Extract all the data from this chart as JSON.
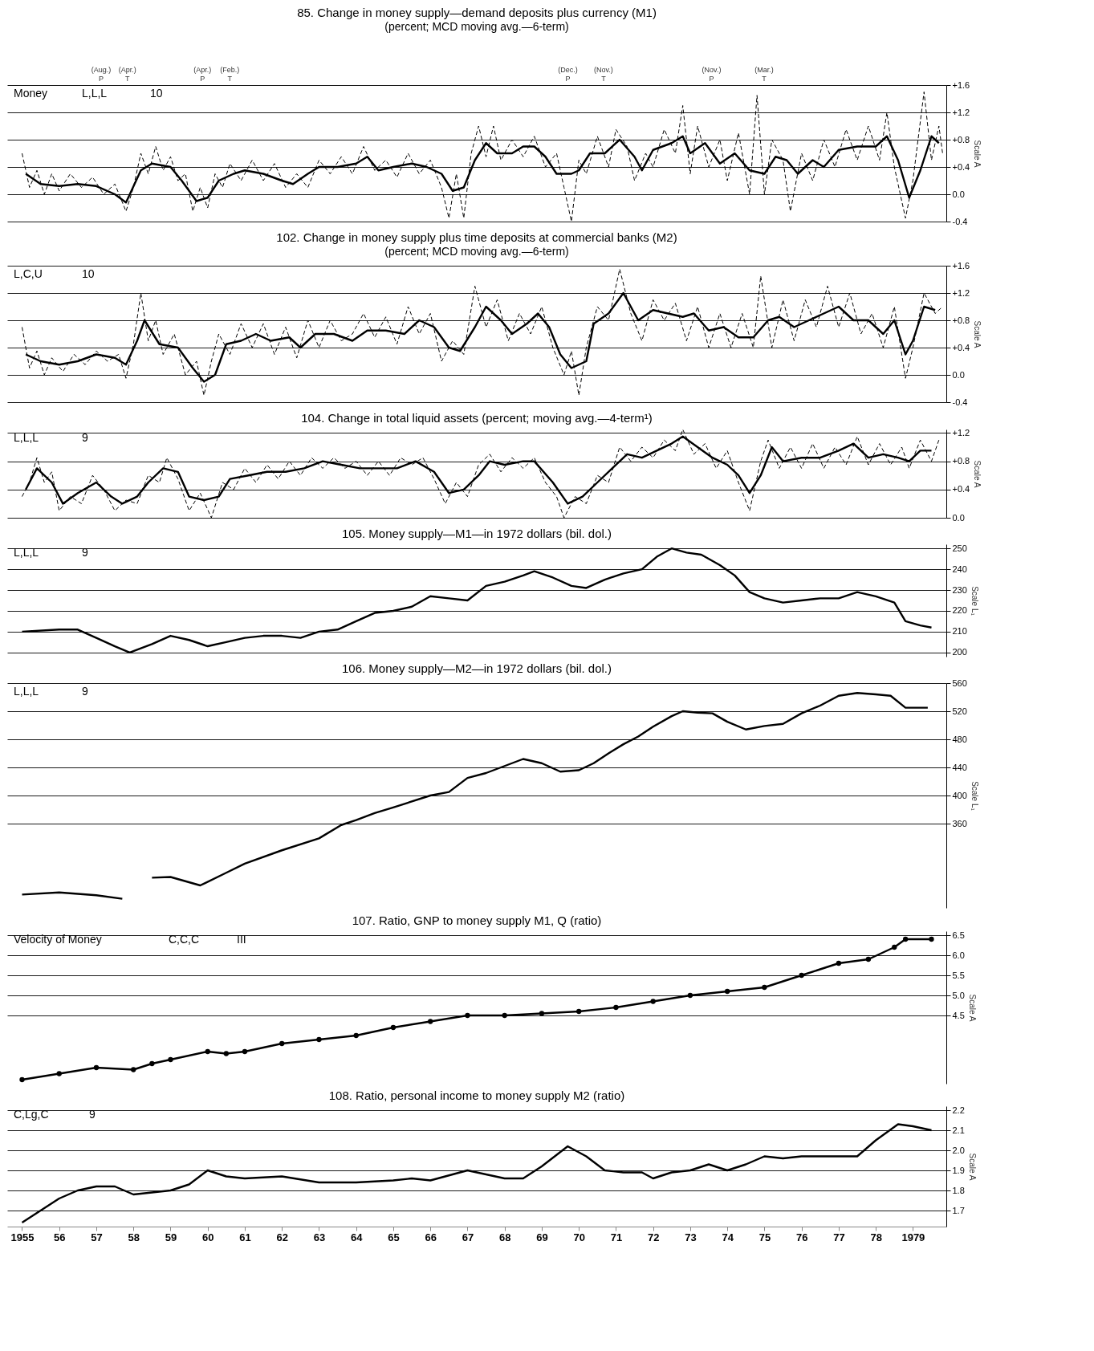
{
  "chart_data": [
    {
      "type": "line",
      "title": "85. Change in money supply—demand deposits plus currency (M1)",
      "subtitle": "(percent; MCD moving avg.—6-term)",
      "ylabel": "Scale A",
      "xlim": [
        1954.6,
        1979.9
      ],
      "ylim": [
        -0.4,
        1.6
      ],
      "yticks": [
        {
          "value": -0.4,
          "label": "-0.4"
        },
        {
          "value": 0,
          "label": "0.0"
        },
        {
          "value": 0.4,
          "label": "+0.4"
        },
        {
          "value": 0.8,
          "label": "+0.8"
        },
        {
          "value": 1.2,
          "label": "+1.2"
        },
        {
          "value": 1.6,
          "label": "+1.6"
        }
      ],
      "grid": "y",
      "tick_labels": "y",
      "annotations": [
        "(Aug.)\nP",
        "(Apr.)\nT",
        "(Apr.)\nP",
        "(Feb.)\nT",
        "(Dec.)\nP",
        "(Nov.)\nT",
        "(Nov.)\nP",
        "(Mar.)\nT",
        "Money",
        "L,L,L",
        "10"
      ],
      "series": [
        {
          "color": "#000000",
          "line_style": "dashed",
          "x": [
            1955.0,
            1955.2,
            1955.4,
            1955.6,
            1955.8,
            1956.0,
            1956.3,
            1956.6,
            1956.9,
            1957.2,
            1957.5,
            1957.8,
            1958.0,
            1958.2,
            1958.4,
            1958.6,
            1958.8,
            1959.0,
            1959.2,
            1959.4,
            1959.6,
            1959.8,
            1960.0,
            1960.2,
            1960.4,
            1960.6,
            1960.9,
            1961.2,
            1961.5,
            1961.8,
            1962.1,
            1962.4,
            1962.7,
            1963.0,
            1963.3,
            1963.6,
            1963.9,
            1964.2,
            1964.5,
            1964.8,
            1965.1,
            1965.4,
            1965.7,
            1966.0,
            1966.3,
            1966.5,
            1966.7,
            1966.9,
            1967.1,
            1967.3,
            1967.5,
            1967.7,
            1967.9,
            1968.2,
            1968.5,
            1968.8,
            1969.1,
            1969.4,
            1969.6,
            1969.8,
            1970.0,
            1970.2,
            1970.5,
            1970.8,
            1971.0,
            1971.3,
            1971.5,
            1971.8,
            1972.0,
            1972.3,
            1972.6,
            1972.8,
            1973.0,
            1973.2,
            1973.5,
            1973.8,
            1974.0,
            1974.3,
            1974.6,
            1974.8,
            1975.0,
            1975.2,
            1975.5,
            1975.7,
            1976.0,
            1976.3,
            1976.6,
            1976.9,
            1977.2,
            1977.5,
            1977.8,
            1978.1,
            1978.3,
            1978.5,
            1978.8,
            1979.0,
            1979.3,
            1979.5,
            1979.7,
            1979.8
          ],
          "values": [
            0.6,
            0.1,
            0.35,
            0.0,
            0.3,
            0.05,
            0.3,
            0.1,
            0.25,
            0.0,
            0.15,
            -0.25,
            0.1,
            0.6,
            0.3,
            0.7,
            0.35,
            0.55,
            0.2,
            0.3,
            -0.25,
            0.1,
            -0.2,
            0.3,
            0.1,
            0.45,
            0.2,
            0.5,
            0.2,
            0.45,
            0.1,
            0.3,
            0.1,
            0.5,
            0.3,
            0.55,
            0.3,
            0.7,
            0.35,
            0.5,
            0.25,
            0.6,
            0.3,
            0.5,
            0.1,
            -0.35,
            0.3,
            -0.35,
            0.6,
            1.0,
            0.55,
            1.0,
            0.5,
            0.8,
            0.55,
            0.85,
            0.4,
            0.6,
            0.1,
            -0.4,
            0.5,
            0.3,
            0.85,
            0.4,
            0.95,
            0.7,
            0.2,
            0.6,
            0.4,
            0.95,
            0.6,
            1.3,
            0.3,
            1.0,
            0.4,
            0.8,
            0.2,
            0.9,
            0.0,
            1.45,
            0.0,
            0.8,
            0.5,
            -0.25,
            0.6,
            0.2,
            0.8,
            0.4,
            0.95,
            0.5,
            1.0,
            0.5,
            1.2,
            0.4,
            -0.35,
            0.2,
            1.5,
            0.5,
            1.0,
            0.6
          ]
        },
        {
          "color": "#000000",
          "line_style": "solid",
          "x": [
            1955.1,
            1955.5,
            1956,
            1956.5,
            1957,
            1957.5,
            1957.8,
            1958.2,
            1958.5,
            1959,
            1959.3,
            1959.7,
            1960,
            1960.3,
            1960.7,
            1961,
            1961.5,
            1962,
            1962.3,
            1962.7,
            1963,
            1963.5,
            1964,
            1964.3,
            1964.6,
            1965,
            1965.5,
            1965.9,
            1966.3,
            1966.6,
            1966.9,
            1967.2,
            1967.5,
            1967.8,
            1968.2,
            1968.5,
            1968.8,
            1969.1,
            1969.4,
            1969.8,
            1970,
            1970.3,
            1970.7,
            1971.1,
            1971.5,
            1971.7,
            1972,
            1972.5,
            1972.8,
            1973,
            1973.4,
            1973.8,
            1974.2,
            1974.6,
            1975,
            1975.3,
            1975.6,
            1975.9,
            1976.3,
            1976.6,
            1977,
            1977.5,
            1978,
            1978.3,
            1978.6,
            1978.9,
            1979.2,
            1979.5,
            1979.7
          ],
          "values": [
            0.3,
            0.15,
            0.12,
            0.15,
            0.12,
            0.0,
            -0.12,
            0.35,
            0.45,
            0.4,
            0.2,
            -0.1,
            -0.05,
            0.2,
            0.3,
            0.35,
            0.3,
            0.2,
            0.15,
            0.3,
            0.4,
            0.4,
            0.45,
            0.55,
            0.35,
            0.4,
            0.45,
            0.4,
            0.3,
            0.05,
            0.1,
            0.5,
            0.75,
            0.6,
            0.6,
            0.7,
            0.7,
            0.55,
            0.3,
            0.3,
            0.35,
            0.6,
            0.6,
            0.8,
            0.55,
            0.35,
            0.65,
            0.75,
            0.85,
            0.6,
            0.75,
            0.45,
            0.6,
            0.35,
            0.3,
            0.55,
            0.5,
            0.3,
            0.5,
            0.4,
            0.65,
            0.7,
            0.7,
            0.85,
            0.5,
            -0.05,
            0.35,
            0.85,
            0.75
          ]
        }
      ]
    },
    {
      "type": "line",
      "title": "102. Change in money supply plus time deposits at commercial banks (M2)",
      "subtitle": "(percent; MCD moving avg.—6-term)",
      "ylabel": "Scale A",
      "xlim": [
        1954.6,
        1979.9
      ],
      "ylim": [
        -0.4,
        1.6
      ],
      "yticks": [
        {
          "value": -0.4,
          "label": "-0.4"
        },
        {
          "value": 0,
          "label": "0.0"
        },
        {
          "value": 0.4,
          "label": "+0.4"
        },
        {
          "value": 0.8,
          "label": "+0.8"
        },
        {
          "value": 1.2,
          "label": "+1.2"
        },
        {
          "value": 1.6,
          "label": "+1.6"
        }
      ],
      "grid": "y",
      "tick_labels": "y",
      "annotations": [
        "L,C,U",
        "10"
      ],
      "series": [
        {
          "color": "#000000",
          "line_style": "dashed",
          "x": [
            1955.0,
            1955.2,
            1955.4,
            1955.6,
            1955.8,
            1956.1,
            1956.4,
            1956.7,
            1957.0,
            1957.3,
            1957.6,
            1957.8,
            1958.0,
            1958.2,
            1958.4,
            1958.6,
            1958.8,
            1959.1,
            1959.4,
            1959.7,
            1959.9,
            1960.1,
            1960.3,
            1960.6,
            1960.9,
            1961.2,
            1961.5,
            1961.8,
            1962.1,
            1962.4,
            1962.7,
            1963.0,
            1963.3,
            1963.6,
            1963.9,
            1964.2,
            1964.5,
            1964.8,
            1965.1,
            1965.4,
            1965.7,
            1966.0,
            1966.3,
            1966.6,
            1966.9,
            1967.2,
            1967.5,
            1967.8,
            1968.1,
            1968.4,
            1968.7,
            1969.0,
            1969.3,
            1969.6,
            1969.8,
            1970.0,
            1970.2,
            1970.5,
            1970.8,
            1971.1,
            1971.4,
            1971.7,
            1972.0,
            1972.3,
            1972.6,
            1972.9,
            1973.2,
            1973.5,
            1973.8,
            1974.1,
            1974.4,
            1974.7,
            1974.9,
            1975.2,
            1975.5,
            1975.8,
            1976.1,
            1976.4,
            1976.7,
            1977.0,
            1977.3,
            1977.6,
            1977.9,
            1978.2,
            1978.5,
            1978.8,
            1979.0,
            1979.3,
            1979.6,
            1979.8
          ],
          "values": [
            0.7,
            0.1,
            0.35,
            0.0,
            0.25,
            0.05,
            0.3,
            0.15,
            0.35,
            0.2,
            0.3,
            -0.05,
            0.45,
            1.2,
            0.5,
            0.8,
            0.3,
            0.6,
            0.0,
            0.2,
            -0.3,
            0.2,
            0.6,
            0.3,
            0.75,
            0.4,
            0.75,
            0.3,
            0.7,
            0.25,
            0.8,
            0.4,
            0.8,
            0.5,
            0.6,
            0.9,
            0.55,
            0.85,
            0.45,
            1.0,
            0.6,
            0.9,
            0.2,
            0.5,
            0.3,
            1.3,
            0.7,
            1.1,
            0.5,
            0.9,
            0.6,
            1.0,
            0.4,
            0.0,
            0.35,
            -0.3,
            0.4,
            1.0,
            0.8,
            1.55,
            0.9,
            0.5,
            1.1,
            0.8,
            1.05,
            0.5,
            1.0,
            0.4,
            0.9,
            0.4,
            0.9,
            0.4,
            1.45,
            0.4,
            1.1,
            0.5,
            1.1,
            0.7,
            1.3,
            0.7,
            1.2,
            0.6,
            0.9,
            0.4,
            1.0,
            -0.05,
            0.4,
            1.2,
            0.9,
            1.0
          ]
        },
        {
          "color": "#000000",
          "line_style": "solid",
          "x": [
            1955.1,
            1955.5,
            1956,
            1956.5,
            1957,
            1957.5,
            1957.8,
            1958.1,
            1958.3,
            1958.7,
            1959.2,
            1959.6,
            1959.9,
            1960.2,
            1960.5,
            1960.9,
            1961.3,
            1961.7,
            1962.2,
            1962.5,
            1962.9,
            1963.4,
            1963.9,
            1964.3,
            1964.8,
            1965.3,
            1965.7,
            1966.1,
            1966.5,
            1966.8,
            1967.2,
            1967.5,
            1967.9,
            1968.2,
            1968.6,
            1968.9,
            1969.2,
            1969.5,
            1969.8,
            1970.2,
            1970.4,
            1970.8,
            1971.2,
            1971.6,
            1972,
            1972.4,
            1972.8,
            1973.1,
            1973.5,
            1973.9,
            1974.3,
            1974.7,
            1975.1,
            1975.4,
            1975.8,
            1976.2,
            1976.6,
            1977,
            1977.4,
            1977.8,
            1978.2,
            1978.5,
            1978.8,
            1979,
            1979.3,
            1979.6
          ],
          "values": [
            0.3,
            0.2,
            0.15,
            0.2,
            0.3,
            0.25,
            0.15,
            0.5,
            0.8,
            0.45,
            0.4,
            0.1,
            -0.1,
            0.0,
            0.45,
            0.5,
            0.6,
            0.5,
            0.55,
            0.4,
            0.6,
            0.6,
            0.5,
            0.65,
            0.65,
            0.6,
            0.8,
            0.7,
            0.4,
            0.35,
            0.7,
            1.0,
            0.8,
            0.6,
            0.75,
            0.9,
            0.7,
            0.3,
            0.1,
            0.2,
            0.75,
            0.9,
            1.2,
            0.8,
            0.95,
            0.9,
            0.85,
            0.9,
            0.65,
            0.7,
            0.55,
            0.55,
            0.8,
            0.85,
            0.7,
            0.8,
            0.9,
            1.0,
            0.8,
            0.8,
            0.6,
            0.8,
            0.3,
            0.5,
            1.0,
            0.95
          ]
        }
      ]
    },
    {
      "type": "line",
      "title": "104. Change in total liquid assets (percent; moving avg.—4-term¹)",
      "ylabel": "Scale A",
      "xlim": [
        1954.6,
        1979.9
      ],
      "ylim": [
        0,
        1.25
      ],
      "yticks": [
        {
          "value": 0,
          "label": "0.0"
        },
        {
          "value": 0.4,
          "label": "+0.4"
        },
        {
          "value": 0.8,
          "label": "+0.8"
        },
        {
          "value": 1.2,
          "label": "+1.2"
        }
      ],
      "grid": "y",
      "tick_labels": "y",
      "annotations": [
        "L,L,L",
        "9"
      ],
      "series": [
        {
          "color": "#000000",
          "line_style": "dashed",
          "x": [
            1955.0,
            1955.2,
            1955.4,
            1955.6,
            1955.8,
            1956.0,
            1956.3,
            1956.6,
            1956.9,
            1957.2,
            1957.5,
            1957.8,
            1958.1,
            1958.4,
            1958.7,
            1958.9,
            1959.2,
            1959.5,
            1959.8,
            1960.1,
            1960.4,
            1960.7,
            1961.0,
            1961.3,
            1961.6,
            1961.9,
            1962.2,
            1962.5,
            1962.8,
            1963.1,
            1963.4,
            1963.7,
            1964.0,
            1964.3,
            1964.6,
            1964.9,
            1965.2,
            1965.5,
            1965.8,
            1966.1,
            1966.4,
            1966.7,
            1967.0,
            1967.3,
            1967.6,
            1967.9,
            1968.2,
            1968.5,
            1968.8,
            1969.1,
            1969.4,
            1969.6,
            1969.9,
            1970.2,
            1970.5,
            1970.8,
            1971.1,
            1971.4,
            1971.7,
            1972.0,
            1972.3,
            1972.6,
            1972.8,
            1973.1,
            1973.4,
            1973.7,
            1974.0,
            1974.3,
            1974.6,
            1974.9,
            1975.1,
            1975.4,
            1975.7,
            1976.0,
            1976.3,
            1976.6,
            1976.9,
            1977.2,
            1977.5,
            1977.8,
            1978.1,
            1978.4,
            1978.7,
            1978.9,
            1979.2,
            1979.5,
            1979.7
          ],
          "values": [
            0.3,
            0.5,
            0.85,
            0.5,
            0.65,
            0.1,
            0.3,
            0.2,
            0.6,
            0.4,
            0.1,
            0.25,
            0.2,
            0.6,
            0.5,
            0.85,
            0.55,
            0.1,
            0.35,
            0.0,
            0.5,
            0.4,
            0.7,
            0.5,
            0.75,
            0.55,
            0.8,
            0.6,
            0.85,
            0.7,
            0.85,
            0.7,
            0.8,
            0.6,
            0.8,
            0.6,
            0.85,
            0.75,
            0.85,
            0.55,
            0.2,
            0.5,
            0.3,
            0.75,
            0.9,
            0.65,
            0.85,
            0.7,
            0.85,
            0.5,
            0.3,
            0.0,
            0.3,
            0.2,
            0.6,
            0.5,
            1.0,
            0.8,
            1.0,
            0.85,
            1.1,
            0.95,
            1.25,
            0.9,
            1.05,
            0.7,
            0.95,
            0.5,
            0.1,
            0.8,
            1.1,
            0.7,
            1.0,
            0.7,
            1.05,
            0.7,
            1.0,
            0.75,
            1.15,
            0.75,
            1.05,
            0.75,
            1.0,
            0.7,
            1.1,
            0.8,
            1.1
          ]
        },
        {
          "color": "#000000",
          "line_style": "solid",
          "x": [
            1955.1,
            1955.4,
            1955.8,
            1956.1,
            1956.5,
            1957,
            1957.4,
            1957.7,
            1958.1,
            1958.4,
            1958.8,
            1959.2,
            1959.5,
            1959.9,
            1960.3,
            1960.6,
            1961.1,
            1961.6,
            1962.1,
            1962.6,
            1963.1,
            1963.6,
            1964.1,
            1964.6,
            1965.1,
            1965.6,
            1966.1,
            1966.5,
            1966.9,
            1967.3,
            1967.6,
            1968,
            1968.5,
            1968.8,
            1969.3,
            1969.7,
            1970.1,
            1970.5,
            1970.9,
            1971.3,
            1971.7,
            1972.1,
            1972.5,
            1972.8,
            1973.2,
            1973.6,
            1974,
            1974.3,
            1974.6,
            1974.9,
            1975.2,
            1975.5,
            1976,
            1976.5,
            1977,
            1977.4,
            1977.8,
            1978.2,
            1978.6,
            1978.9,
            1979.2,
            1979.5
          ],
          "values": [
            0.4,
            0.7,
            0.5,
            0.2,
            0.35,
            0.5,
            0.3,
            0.2,
            0.3,
            0.5,
            0.7,
            0.65,
            0.3,
            0.25,
            0.3,
            0.55,
            0.6,
            0.65,
            0.65,
            0.7,
            0.8,
            0.75,
            0.7,
            0.7,
            0.7,
            0.8,
            0.65,
            0.35,
            0.4,
            0.6,
            0.8,
            0.75,
            0.8,
            0.8,
            0.5,
            0.2,
            0.3,
            0.5,
            0.7,
            0.9,
            0.85,
            0.95,
            1.05,
            1.15,
            1.0,
            0.85,
            0.75,
            0.6,
            0.35,
            0.6,
            1.0,
            0.8,
            0.85,
            0.85,
            0.95,
            1.05,
            0.85,
            0.9,
            0.85,
            0.8,
            0.95,
            0.95
          ]
        }
      ]
    },
    {
      "type": "line",
      "title": "105. Money supply—M1—in 1972 dollars (bil. dol.)",
      "ylabel": "Scale L₁",
      "xlim": [
        1954.6,
        1979.9
      ],
      "ylim": [
        198,
        252
      ],
      "yticks": [
        200,
        210,
        220,
        230,
        240,
        250
      ],
      "grid": "y",
      "tick_labels": "y",
      "annotations": [
        "L,L,L",
        "9"
      ],
      "series": [
        {
          "color": "#000000",
          "x": [
            1955,
            1956,
            1956.5,
            1957,
            1957.5,
            1957.9,
            1958.5,
            1959,
            1959.5,
            1960,
            1960.5,
            1961,
            1961.5,
            1962,
            1962.5,
            1963,
            1963.5,
            1964,
            1964.5,
            1965,
            1965.5,
            1966,
            1966.5,
            1967,
            1967.5,
            1968,
            1968.5,
            1968.8,
            1969.3,
            1969.8,
            1970.2,
            1970.7,
            1971.2,
            1971.7,
            1972.1,
            1972.5,
            1972.9,
            1973.3,
            1973.8,
            1974.2,
            1974.6,
            1975,
            1975.5,
            1976,
            1976.5,
            1977,
            1977.5,
            1978,
            1978.5,
            1978.8,
            1979.2,
            1979.5
          ],
          "values": [
            210,
            211,
            211,
            207,
            203,
            200,
            204,
            208,
            206,
            203,
            205,
            207,
            208,
            208,
            207,
            210,
            211,
            215,
            219,
            220,
            222,
            227,
            226,
            225,
            232,
            234,
            237,
            239,
            236,
            232,
            231,
            235,
            238,
            240,
            246,
            250,
            248,
            247,
            242,
            237,
            229,
            226,
            224,
            225,
            226,
            226,
            229,
            227,
            224,
            215,
            213,
            212
          ]
        }
      ]
    },
    {
      "type": "line",
      "title": "106. Money supply—M2—in 1972 dollars (bil. dol.)",
      "ylabel": "Scale L₁",
      "xlim": [
        1954.6,
        1979.9
      ],
      "ylim": [
        240,
        560
      ],
      "yticks": [
        360,
        400,
        440,
        480,
        520,
        560
      ],
      "grid": "y",
      "tick_labels": "y",
      "annotations": [
        "L,L,L",
        "9"
      ],
      "series": [
        {
          "color": "#000000",
          "x": [
            1955,
            1956,
            1957,
            1957.7,
            1958.2,
            1958.5,
            1959,
            1959.8,
            1960.5,
            1961,
            1962,
            1963,
            1963.6,
            1964,
            1964.5,
            1965,
            1966,
            1966.5,
            1967,
            1967.5,
            1968,
            1968.5,
            1969,
            1969.5,
            1970,
            1970.4,
            1970.8,
            1971.2,
            1971.6,
            1972,
            1972.5,
            1972.8,
            1973.2,
            1973.6,
            1974,
            1974.5,
            1975,
            1975.5,
            1976,
            1976.5,
            1977,
            1977.5,
            1978,
            1978.4,
            1978.8,
            1979.4
          ],
          "values": [
            259,
            262,
            258,
            253,
            null,
            283,
            284,
            272,
            290,
            303,
            322,
            339,
            358,
            365,
            375,
            383,
            400,
            405,
            425,
            432,
            442,
            452,
            446,
            434,
            436,
            446,
            460,
            473,
            484,
            498,
            513,
            520,
            518,
            517,
            505,
            494,
            499,
            502,
            517,
            528,
            542,
            546,
            544,
            542,
            525,
            525
          ]
        }
      ]
    },
    {
      "type": "line",
      "title": "107. Ratio, GNP to money supply M1, Q (ratio)",
      "ylabel": "Scale A",
      "xlim": [
        1954.6,
        1979.9
      ],
      "ylim": [
        2.8,
        6.6
      ],
      "yticks": [
        {
          "value": 4.5,
          "label": "4.5"
        },
        {
          "value": 5,
          "label": "5.0"
        },
        {
          "value": 5.5,
          "label": "5.5"
        },
        {
          "value": 6,
          "label": "6.0"
        },
        {
          "value": 6.5,
          "label": "6.5"
        }
      ],
      "grid": "y",
      "tick_labels": "y",
      "marker": "circle",
      "annotations": [
        "Velocity of Money",
        "C,C,C",
        "III"
      ],
      "series": [
        {
          "color": "#000000",
          "x": [
            1955,
            1956,
            1957,
            1958,
            1958.5,
            1959,
            1960,
            1960.5,
            1961,
            1962,
            1963,
            1964,
            1965,
            1966,
            1967,
            1968,
            1969,
            1970,
            1971,
            1972,
            1973,
            1974,
            1975,
            1976,
            1977,
            1977.8,
            1978.5,
            1978.8,
            1979.5
          ],
          "values": [
            2.9,
            3.05,
            3.2,
            3.15,
            3.3,
            3.4,
            3.6,
            3.55,
            3.6,
            3.8,
            3.9,
            4.0,
            4.2,
            4.35,
            4.5,
            4.5,
            4.55,
            4.6,
            4.7,
            4.85,
            5.0,
            5.1,
            5.2,
            5.5,
            5.8,
            5.9,
            6.2,
            6.4,
            6.4
          ]
        }
      ]
    },
    {
      "type": "line",
      "title": "108. Ratio, personal income to money supply M2 (ratio)",
      "ylabel": "Scale A",
      "xlim": [
        1954.6,
        1979.9
      ],
      "ylim": [
        1.62,
        2.22
      ],
      "yticks": [
        1.7,
        1.8,
        1.9,
        {
          "value": 2,
          "label": "2.0"
        },
        2.1,
        2.2
      ],
      "xticks": [
        1955,
        {
          "value": 1956,
          "label": "56"
        },
        {
          "value": 1957,
          "label": "57"
        },
        {
          "value": 1958,
          "label": "58"
        },
        {
          "value": 1959,
          "label": "59"
        },
        {
          "value": 1960,
          "label": "60"
        },
        {
          "value": 1961,
          "label": "61"
        },
        {
          "value": 1962,
          "label": "62"
        },
        {
          "value": 1963,
          "label": "63"
        },
        {
          "value": 1964,
          "label": "64"
        },
        {
          "value": 1965,
          "label": "65"
        },
        {
          "value": 1966,
          "label": "66"
        },
        {
          "value": 1967,
          "label": "67"
        },
        {
          "value": 1968,
          "label": "68"
        },
        {
          "value": 1969,
          "label": "69"
        },
        {
          "value": 1970,
          "label": "70"
        },
        {
          "value": 1971,
          "label": "71"
        },
        {
          "value": 1972,
          "label": "72"
        },
        {
          "value": 1973,
          "label": "73"
        },
        {
          "value": 1974,
          "label": "74"
        },
        {
          "value": 1975,
          "label": "75"
        },
        {
          "value": 1976,
          "label": "76"
        },
        {
          "value": 1977,
          "label": "77"
        },
        {
          "value": 1978,
          "label": "78"
        },
        1979
      ],
      "grid": "y",
      "annotations": [
        "C,Lg,C",
        "9"
      ],
      "series": [
        {
          "color": "#000000",
          "x": [
            1955,
            1955.5,
            1956,
            1956.5,
            1957,
            1957.5,
            1958,
            1958.5,
            1959,
            1959.5,
            1960,
            1960.5,
            1961,
            1962,
            1963,
            1964,
            1965,
            1965.5,
            1966,
            1967,
            1967.5,
            1968,
            1968.5,
            1969,
            1969.7,
            1970.2,
            1970.7,
            1971.2,
            1971.7,
            1972,
            1972.5,
            1973,
            1973.5,
            1974,
            1974.5,
            1975,
            1975.5,
            1976,
            1977,
            1977.5,
            1978,
            1978.6,
            1979,
            1979.5
          ],
          "values": [
            1.64,
            1.7,
            1.76,
            1.8,
            1.82,
            1.82,
            1.78,
            1.79,
            1.8,
            1.83,
            1.9,
            1.87,
            1.86,
            1.87,
            1.84,
            1.84,
            1.85,
            1.86,
            1.85,
            1.9,
            1.88,
            1.86,
            1.86,
            1.92,
            2.02,
            1.97,
            1.9,
            1.89,
            1.89,
            1.86,
            1.89,
            1.9,
            1.93,
            1.9,
            1.93,
            1.97,
            1.96,
            1.97,
            1.97,
            1.97,
            2.05,
            2.13,
            2.12,
            2.1
          ]
        }
      ]
    }
  ]
}
